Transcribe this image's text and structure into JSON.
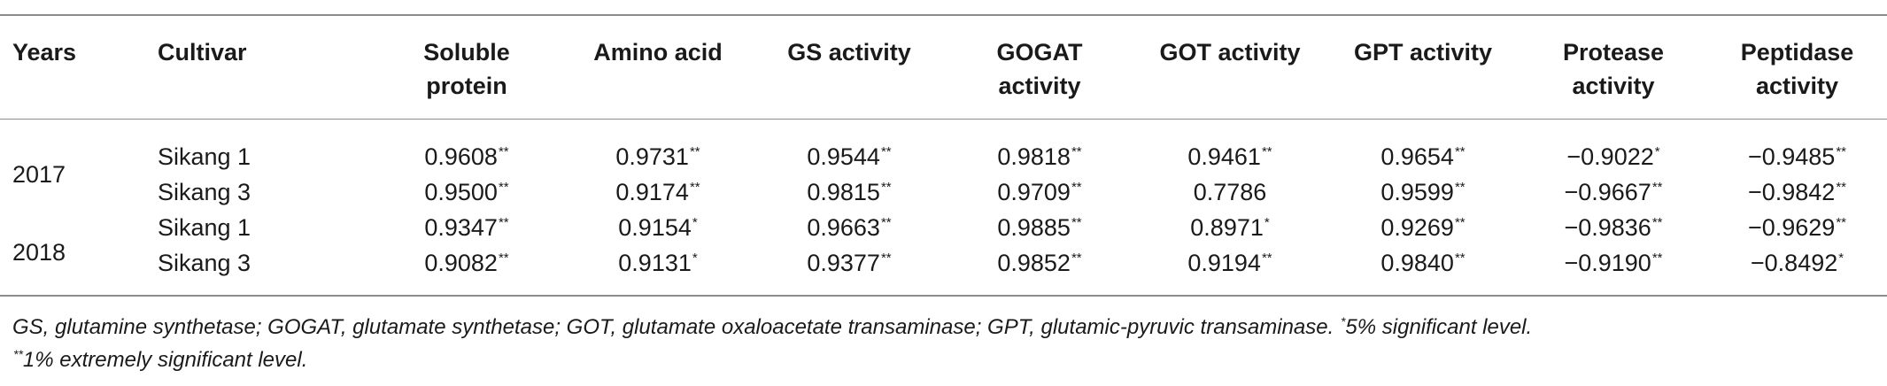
{
  "columns": [
    {
      "line1": "Years",
      "line2": ""
    },
    {
      "line1": "Cultivar",
      "line2": ""
    },
    {
      "line1": "Soluble",
      "line2": "protein"
    },
    {
      "line1": "Amino acid",
      "line2": ""
    },
    {
      "line1": "GS activity",
      "line2": ""
    },
    {
      "line1": "GOGAT",
      "line2": "activity"
    },
    {
      "line1": "GOT activity",
      "line2": ""
    },
    {
      "line1": "GPT activity",
      "line2": ""
    },
    {
      "line1": "Protease",
      "line2": "activity"
    },
    {
      "line1": "Peptidase",
      "line2": "activity"
    }
  ],
  "groups": [
    {
      "year": "2017",
      "rows": [
        {
          "cultivar": "Sikang 1",
          "cells": [
            {
              "v": "0.9608",
              "s": "**"
            },
            {
              "v": "0.9731",
              "s": "**"
            },
            {
              "v": "0.9544",
              "s": "**"
            },
            {
              "v": "0.9818",
              "s": "**"
            },
            {
              "v": "0.9461",
              "s": "**"
            },
            {
              "v": "0.9654",
              "s": "**"
            },
            {
              "v": "−0.9022",
              "s": "*"
            },
            {
              "v": "−0.9485",
              "s": "**"
            }
          ]
        },
        {
          "cultivar": "Sikang 3",
          "cells": [
            {
              "v": "0.9500",
              "s": "**"
            },
            {
              "v": "0.9174",
              "s": "**"
            },
            {
              "v": "0.9815",
              "s": "**"
            },
            {
              "v": "0.9709",
              "s": "**"
            },
            {
              "v": "0.7786",
              "s": ""
            },
            {
              "v": "0.9599",
              "s": "**"
            },
            {
              "v": "−0.9667",
              "s": "**"
            },
            {
              "v": "−0.9842",
              "s": "**"
            }
          ]
        }
      ]
    },
    {
      "year": "2018",
      "rows": [
        {
          "cultivar": "Sikang 1",
          "cells": [
            {
              "v": "0.9347",
              "s": "**"
            },
            {
              "v": "0.9154",
              "s": "*"
            },
            {
              "v": "0.9663",
              "s": "**"
            },
            {
              "v": "0.9885",
              "s": "**"
            },
            {
              "v": "0.8971",
              "s": "*"
            },
            {
              "v": "0.9269",
              "s": "**"
            },
            {
              "v": "−0.9836",
              "s": "**"
            },
            {
              "v": "−0.9629",
              "s": "**"
            }
          ]
        },
        {
          "cultivar": "Sikang 3",
          "cells": [
            {
              "v": "0.9082",
              "s": "**"
            },
            {
              "v": "0.9131",
              "s": "*"
            },
            {
              "v": "0.9377",
              "s": "**"
            },
            {
              "v": "0.9852",
              "s": "**"
            },
            {
              "v": "0.9194",
              "s": "**"
            },
            {
              "v": "0.9840",
              "s": "**"
            },
            {
              "v": "−0.9190",
              "s": "**"
            },
            {
              "v": "−0.8492",
              "s": "*"
            }
          ]
        }
      ]
    }
  ],
  "footnote": {
    "line1_text": "GS, glutamine synthetase; GOGAT, glutamate synthetase; GOT, glutamate oxaloacetate transaminase; GPT, glutamic-pyruvic transaminase. ",
    "line1_mark": "*",
    "line1_tail": "5% significant level.",
    "line2_mark": "**",
    "line2_text": "1% extremely significant level."
  }
}
